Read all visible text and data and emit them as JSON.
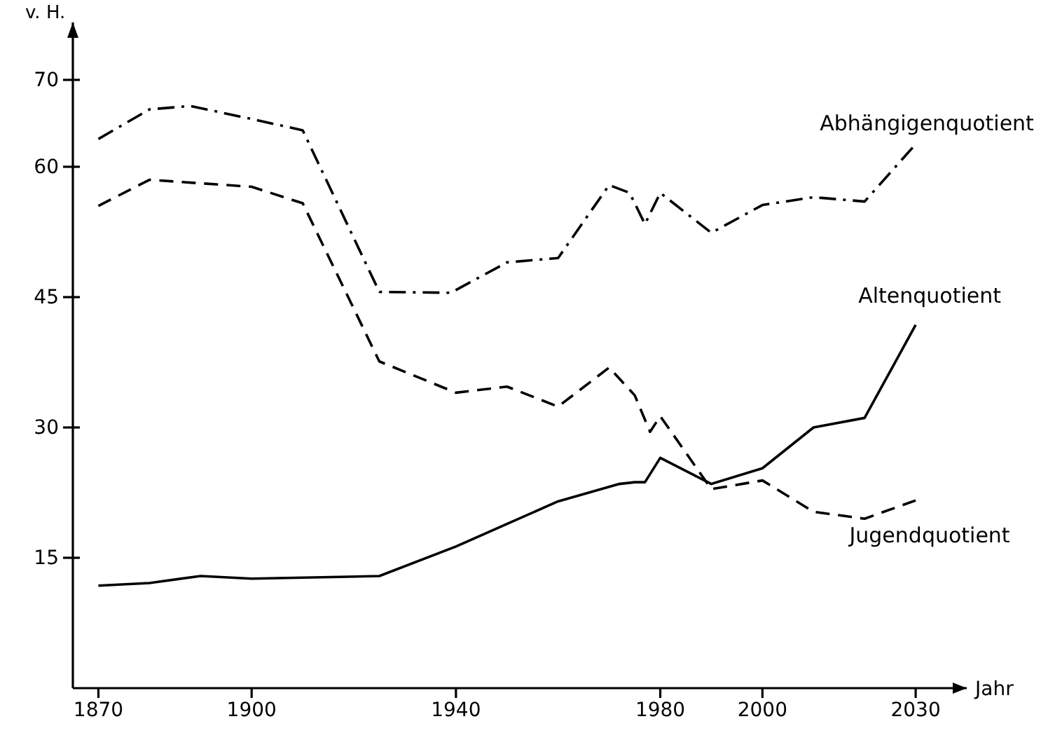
{
  "chart_data": {
    "type": "line",
    "xlabel": "Jahr",
    "ylabel": "v. H.",
    "xlim": [
      1865,
      2040
    ],
    "ylim": [
      0,
      75
    ],
    "xticks": [
      1870,
      1900,
      1940,
      1980,
      2000,
      2030
    ],
    "yticks": [
      15,
      30,
      45,
      60,
      70
    ],
    "grid": false,
    "legend": false,
    "marker": "none",
    "series": [
      {
        "name": "Abhängigenquotient",
        "color": "#000000",
        "line_style": "dashdot",
        "x": [
          1870,
          1880,
          1888,
          1900,
          1910,
          1925,
          1939,
          1950,
          1960,
          1970,
          1974,
          1977,
          1980,
          1990,
          2000,
          2010,
          2020,
          2030
        ],
        "values": [
          63.2,
          66.6,
          67,
          65.5,
          64.2,
          45.6,
          45.5,
          49,
          49.5,
          57.9,
          57,
          53.4,
          57,
          52.4,
          55.6,
          56.5,
          56,
          62.6
        ]
      },
      {
        "name": "Jugendquotient",
        "color": "#000000",
        "line_style": "dashed",
        "x": [
          1870,
          1880,
          1900,
          1910,
          1925,
          1940,
          1950,
          1960,
          1970,
          1975,
          1978,
          1980,
          1990,
          2000,
          2010,
          2020,
          2030
        ],
        "values": [
          55.5,
          58.5,
          57.7,
          55.8,
          37.6,
          34,
          34.7,
          32.4,
          36.9,
          33.7,
          29.5,
          31.3,
          22.9,
          23.9,
          20.3,
          19.5,
          21.6
        ]
      },
      {
        "name": "Altenquotient",
        "color": "#000000",
        "line_style": "solid",
        "x": [
          1870,
          1880,
          1890,
          1900,
          1925,
          1940,
          1950,
          1960,
          1972,
          1975,
          1977,
          1980,
          1990,
          2000,
          2010,
          2020,
          2030
        ],
        "values": [
          11.8,
          12.1,
          12.9,
          12.6,
          12.9,
          16.3,
          18.9,
          21.5,
          23.5,
          23.7,
          23.7,
          26.5,
          23.5,
          25.3,
          30,
          31.1,
          41.8
        ]
      }
    ]
  }
}
